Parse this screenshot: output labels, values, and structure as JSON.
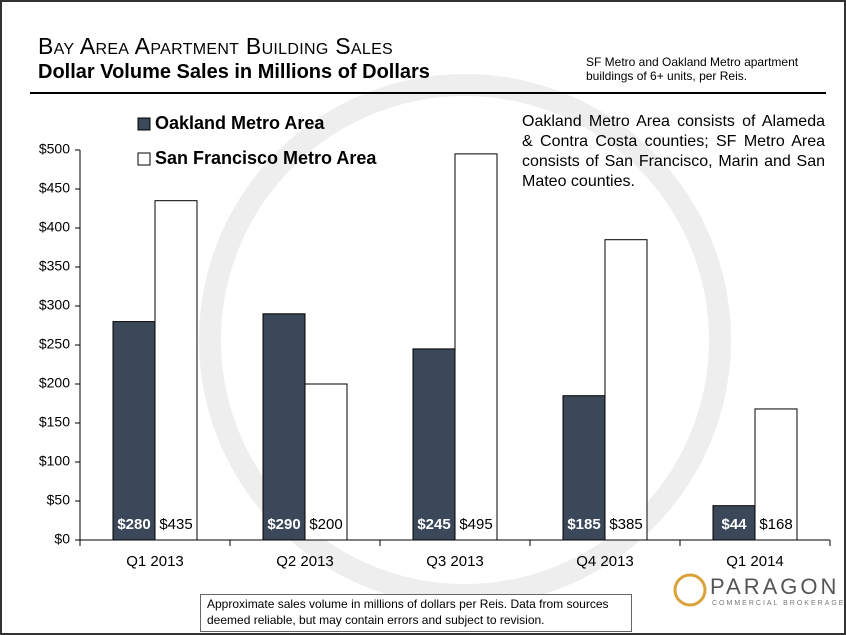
{
  "chart_data": {
    "type": "bar",
    "title": "Bay Area Apartment Building Sales",
    "subtitle": "Dollar Volume Sales in Millions of Dollars",
    "note": "SF Metro and Oakland Metro apartment buildings of 6+ units, per Reis.",
    "annotation": "Oakland Metro Area consists of Alameda & Contra Costa counties; SF Metro Area consists of San Francisco, Marin and San Mateo counties.",
    "footnote": "Approximate sales volume in millions of dollars per Reis. Data from sources deemed reliable, but may contain errors and subject to revision.",
    "logo": {
      "name": "PARAGON",
      "tagline": "COMMERCIAL BROKERAGE"
    },
    "categories": [
      "Q1 2013",
      "Q2 2013",
      "Q3 2013",
      "Q4 2013",
      "Q1 2014"
    ],
    "series": [
      {
        "name": "Oakland Metro Area",
        "color": "#3b4859",
        "values": [
          280,
          290,
          245,
          185,
          44
        ],
        "value_labels": [
          "$280",
          "$290",
          "$245",
          "$185",
          "$44"
        ]
      },
      {
        "name": "San Francisco Metro Area",
        "color": "#ffffff",
        "values": [
          435,
          200,
          495,
          385,
          168
        ],
        "value_labels": [
          "$435",
          "$200",
          "$495",
          "$385",
          "$168"
        ]
      }
    ],
    "ylim": [
      0,
      500
    ],
    "yticks": [
      {
        "value": 0,
        "label": "$0"
      },
      {
        "value": 50,
        "label": "$50"
      },
      {
        "value": 100,
        "label": "$100"
      },
      {
        "value": 150,
        "label": "$150"
      },
      {
        "value": 200,
        "label": "$200"
      },
      {
        "value": 250,
        "label": "$250"
      },
      {
        "value": 300,
        "label": "$300"
      },
      {
        "value": 350,
        "label": "$350"
      },
      {
        "value": 400,
        "label": "$400"
      },
      {
        "value": 450,
        "label": "$450"
      },
      {
        "value": 500,
        "label": "$500"
      }
    ],
    "grid": false
  }
}
